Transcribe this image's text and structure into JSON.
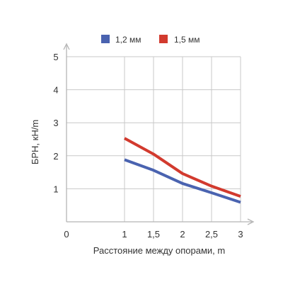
{
  "chart_data": {
    "type": "line",
    "xlabel": "Расстояние между опорами, m",
    "ylabel": "БРН, кН/m",
    "x_ticks": [
      "0",
      "1",
      "1,5",
      "2",
      "2,5",
      "3"
    ],
    "y_ticks": [
      "1",
      "2",
      "3",
      "4",
      "5"
    ],
    "xlim": [
      0,
      3
    ],
    "ylim": [
      0,
      5
    ],
    "grid": true,
    "legend_position": "top-center",
    "series": [
      {
        "name": "1,2 мм",
        "color": "#4a63b0",
        "x": [
          1,
          1.5,
          2,
          2.5,
          3
        ],
        "y": [
          1.88,
          1.56,
          1.16,
          0.88,
          0.59
        ]
      },
      {
        "name": "1,5 мм",
        "color": "#d23a2e",
        "x": [
          1,
          1.5,
          2,
          2.5,
          3
        ],
        "y": [
          2.53,
          2.05,
          1.46,
          1.08,
          0.77
        ]
      }
    ]
  }
}
